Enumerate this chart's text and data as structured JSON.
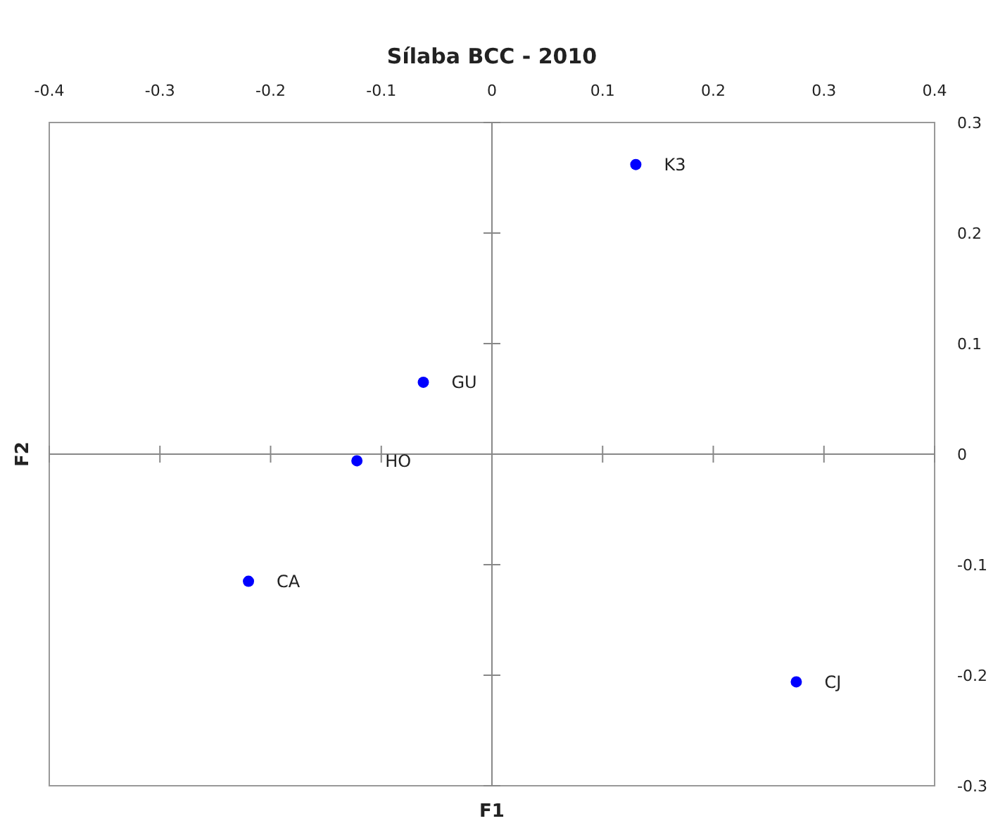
{
  "chart_data": {
    "type": "scatter",
    "title": "Sílaba BCC - 2010",
    "xlabel": "F1",
    "ylabel": "F2",
    "series": [
      {
        "color": "#0000ff",
        "x": [
          0.13,
          -0.062,
          -0.122,
          -0.22,
          0.275
        ],
        "values": [
          0.262,
          0.065,
          -0.006,
          -0.115,
          -0.206
        ]
      }
    ],
    "annotations": [
      {
        "text": "K3",
        "x": 0.13,
        "y": 0.262
      },
      {
        "text": "GU",
        "x": -0.062,
        "y": 0.065
      },
      {
        "text": "HO",
        "x": -0.122,
        "y": -0.006
      },
      {
        "text": "CA",
        "x": -0.22,
        "y": -0.115
      },
      {
        "text": "CJ",
        "x": 0.275,
        "y": -0.206
      }
    ],
    "xlim": [
      -0.4,
      0.4
    ],
    "xticks": [
      -0.4,
      -0.3,
      -0.2,
      -0.1,
      0,
      0.1,
      0.2,
      0.3,
      0.4
    ],
    "ylim": [
      -0.3,
      0.3
    ],
    "yticks": [
      -0.3,
      -0.2,
      -0.1,
      0,
      0.1,
      0.2,
      0.3
    ],
    "marker": "circle"
  }
}
